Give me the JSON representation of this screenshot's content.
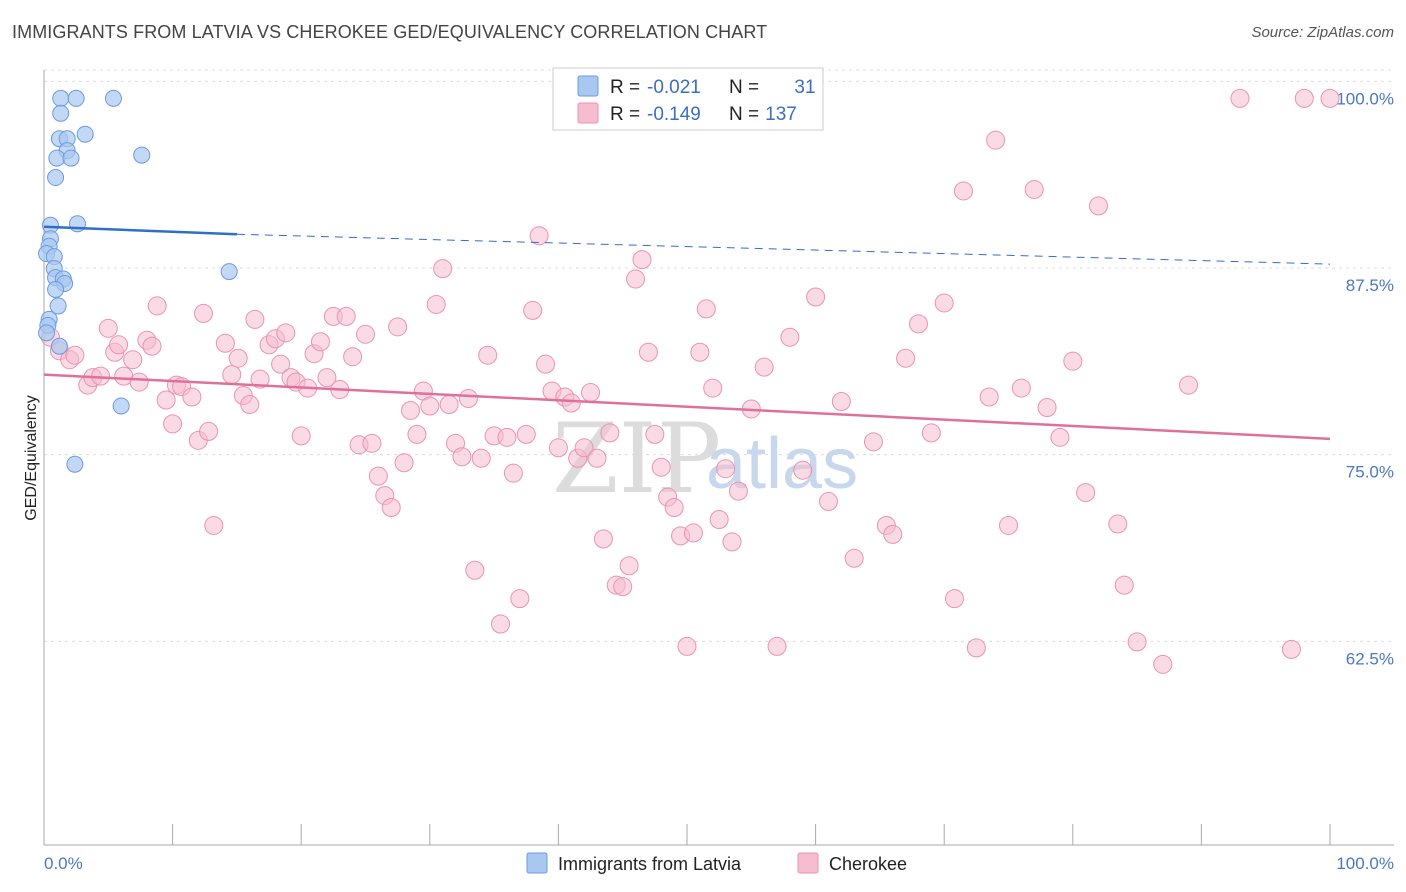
{
  "header": {
    "title": "IMMIGRANTS FROM LATVIA VS CHEROKEE GED/EQUIVALENCY CORRELATION CHART",
    "source": "Source: ZipAtlas.com"
  },
  "watermark": {
    "zip": "ZIP",
    "atlas": "atlas"
  },
  "legend": {
    "row1": {
      "r_label": "R =",
      "r_value": "-0.021",
      "n_label": "N =",
      "n_value": "31"
    },
    "row2": {
      "r_label": "R =",
      "r_value": "-0.149",
      "n_label": "N =",
      "n_value": "137"
    }
  },
  "colors": {
    "blue_fill": "#a9c8f0",
    "blue_stroke": "#6a9be0",
    "blue_line": "#2f6fca",
    "pink_fill": "#f6bcd0",
    "pink_stroke": "#ea93b2",
    "pink_line": "#e0709a",
    "grid": "#dcdcdc",
    "axis": "#aaaaaa",
    "tick_label": "#4a78c2"
  },
  "chart_data": {
    "type": "scatter",
    "title": "IMMIGRANTS FROM LATVIA VS CHEROKEE GED/EQUIVALENCY CORRELATION CHART",
    "xlabel": "",
    "ylabel": "GED/Equivalency",
    "xlim": [
      0,
      100
    ],
    "ylim": [
      50,
      101.9
    ],
    "x_tick_labels": [
      "0.0%",
      "100.0%"
    ],
    "y_ticks": [
      {
        "value": 100.0,
        "label": "100.0%"
      },
      {
        "value": 87.5,
        "label": "87.5%"
      },
      {
        "value": 75.0,
        "label": "75.0%"
      },
      {
        "value": 62.5,
        "label": "62.5%"
      }
    ],
    "bottom_legend": [
      "Immigrants from Latvia",
      "Cherokee"
    ],
    "series": [
      {
        "name": "Immigrants from Latvia",
        "R": -0.021,
        "N": 31,
        "trend": {
          "x": [
            0,
            15
          ],
          "y": [
            91.4,
            90.9
          ],
          "dash_to": [
            100,
            88.9
          ]
        },
        "points": [
          [
            1.3,
            100
          ],
          [
            2.5,
            100
          ],
          [
            5.4,
            100
          ],
          [
            1.3,
            99.0
          ],
          [
            3.2,
            97.6
          ],
          [
            1.2,
            97.3
          ],
          [
            1.8,
            97.3
          ],
          [
            1.8,
            96.5
          ],
          [
            1.0,
            96.0
          ],
          [
            2.1,
            96.0
          ],
          [
            7.6,
            96.2
          ],
          [
            0.9,
            94.7
          ],
          [
            0.5,
            91.5
          ],
          [
            2.6,
            91.6
          ],
          [
            0.5,
            90.6
          ],
          [
            0.4,
            90.1
          ],
          [
            0.2,
            89.6
          ],
          [
            0.8,
            89.4
          ],
          [
            0.8,
            88.6
          ],
          [
            0.9,
            88.0
          ],
          [
            1.5,
            87.9
          ],
          [
            1.6,
            87.6
          ],
          [
            0.9,
            87.2
          ],
          [
            14.4,
            88.4
          ],
          [
            1.1,
            86.1
          ],
          [
            0.4,
            85.2
          ],
          [
            0.3,
            84.8
          ],
          [
            0.2,
            84.3
          ],
          [
            1.2,
            83.4
          ],
          [
            6.0,
            79.4
          ],
          [
            2.4,
            75.5
          ]
        ]
      },
      {
        "name": "Cherokee",
        "R": -0.149,
        "N": 137,
        "trend": {
          "x": [
            0,
            100
          ],
          "y": [
            81.5,
            77.2
          ]
        },
        "points": [
          [
            0.5,
            84.0
          ],
          [
            1.2,
            83.1
          ],
          [
            2.0,
            82.5
          ],
          [
            2.4,
            82.8
          ],
          [
            3.4,
            80.8
          ],
          [
            3.8,
            81.3
          ],
          [
            4.4,
            81.4
          ],
          [
            5.0,
            84.6
          ],
          [
            5.5,
            83.0
          ],
          [
            5.8,
            83.5
          ],
          [
            6.2,
            81.4
          ],
          [
            6.9,
            82.5
          ],
          [
            7.4,
            81.0
          ],
          [
            8.0,
            83.8
          ],
          [
            8.4,
            83.4
          ],
          [
            8.8,
            86.1
          ],
          [
            9.5,
            79.8
          ],
          [
            10.0,
            78.2
          ],
          [
            10.3,
            80.8
          ],
          [
            10.7,
            80.7
          ],
          [
            11.5,
            80.0
          ],
          [
            12.0,
            77.1
          ],
          [
            12.4,
            85.6
          ],
          [
            12.8,
            77.7
          ],
          [
            13.2,
            71.4
          ],
          [
            14.1,
            83.6
          ],
          [
            14.6,
            81.5
          ],
          [
            15.1,
            82.6
          ],
          [
            15.5,
            80.1
          ],
          [
            16.0,
            79.5
          ],
          [
            16.4,
            85.2
          ],
          [
            16.8,
            81.2
          ],
          [
            17.5,
            83.5
          ],
          [
            18.0,
            83.9
          ],
          [
            18.4,
            82.2
          ],
          [
            18.8,
            84.3
          ],
          [
            19.2,
            81.3
          ],
          [
            19.6,
            81.0
          ],
          [
            20.0,
            77.4
          ],
          [
            20.5,
            80.6
          ],
          [
            21.0,
            82.9
          ],
          [
            21.5,
            83.7
          ],
          [
            22.0,
            81.3
          ],
          [
            22.5,
            85.4
          ],
          [
            23.0,
            80.5
          ],
          [
            23.5,
            85.4
          ],
          [
            24.0,
            82.7
          ],
          [
            24.5,
            76.8
          ],
          [
            25.0,
            84.2
          ],
          [
            25.5,
            76.9
          ],
          [
            26.0,
            74.7
          ],
          [
            26.5,
            73.4
          ],
          [
            27.0,
            72.6
          ],
          [
            27.5,
            84.7
          ],
          [
            28.0,
            75.6
          ],
          [
            28.5,
            79.1
          ],
          [
            29.0,
            77.5
          ],
          [
            29.5,
            80.4
          ],
          [
            30.0,
            79.4
          ],
          [
            30.5,
            86.2
          ],
          [
            31.0,
            88.6
          ],
          [
            31.5,
            79.5
          ],
          [
            32.0,
            76.9
          ],
          [
            32.5,
            76.0
          ],
          [
            33.0,
            79.9
          ],
          [
            33.5,
            68.4
          ],
          [
            34.0,
            75.9
          ],
          [
            34.5,
            82.8
          ],
          [
            35.0,
            77.4
          ],
          [
            35.5,
            64.8
          ],
          [
            36.0,
            77.3
          ],
          [
            36.5,
            74.9
          ],
          [
            37.0,
            66.5
          ],
          [
            37.5,
            77.5
          ],
          [
            38.0,
            85.8
          ],
          [
            38.5,
            90.8
          ],
          [
            39.0,
            82.2
          ],
          [
            39.5,
            80.4
          ],
          [
            40.0,
            76.6
          ],
          [
            40.5,
            80.0
          ],
          [
            41.0,
            79.6
          ],
          [
            41.5,
            75.9
          ],
          [
            42.0,
            76.6
          ],
          [
            42.5,
            80.3
          ],
          [
            43.0,
            75.9
          ],
          [
            43.5,
            70.5
          ],
          [
            44.0,
            77.6
          ],
          [
            44.5,
            67.4
          ],
          [
            45.0,
            67.3
          ],
          [
            45.5,
            68.7
          ],
          [
            46.0,
            87.9
          ],
          [
            46.5,
            89.2
          ],
          [
            47.0,
            83.0
          ],
          [
            47.5,
            77.5
          ],
          [
            48.0,
            75.3
          ],
          [
            48.5,
            73.3
          ],
          [
            49.0,
            72.6
          ],
          [
            49.5,
            70.7
          ],
          [
            50.0,
            63.3
          ],
          [
            50.5,
            70.9
          ],
          [
            51.0,
            83.0
          ],
          [
            51.5,
            85.9
          ],
          [
            52.0,
            80.6
          ],
          [
            52.5,
            71.8
          ],
          [
            53.0,
            75.2
          ],
          [
            53.5,
            70.3
          ],
          [
            54.0,
            73.7
          ],
          [
            55.0,
            79.2
          ],
          [
            56.0,
            82.0
          ],
          [
            57.0,
            63.3
          ],
          [
            58.0,
            84.0
          ],
          [
            59.0,
            75.1
          ],
          [
            60.0,
            86.7
          ],
          [
            61.0,
            73.0
          ],
          [
            62.0,
            79.7
          ],
          [
            63.0,
            69.2
          ],
          [
            64.5,
            77.0
          ],
          [
            65.5,
            71.4
          ],
          [
            66.0,
            70.8
          ],
          [
            67.0,
            82.6
          ],
          [
            68.0,
            84.9
          ],
          [
            69.0,
            77.6
          ],
          [
            70.0,
            86.3
          ],
          [
            70.8,
            66.5
          ],
          [
            71.5,
            93.8
          ],
          [
            72.5,
            63.2
          ],
          [
            73.5,
            80.0
          ],
          [
            74.0,
            97.2
          ],
          [
            75.0,
            71.4
          ],
          [
            76.0,
            80.6
          ],
          [
            77.0,
            93.9
          ],
          [
            78.0,
            79.3
          ],
          [
            79.0,
            77.3
          ],
          [
            80.0,
            82.4
          ],
          [
            81.0,
            73.6
          ],
          [
            82.0,
            92.8
          ],
          [
            83.5,
            71.5
          ],
          [
            84.0,
            67.4
          ],
          [
            85.0,
            63.6
          ],
          [
            87.0,
            62.1
          ],
          [
            89.0,
            80.8
          ],
          [
            93.0,
            100
          ],
          [
            97.0,
            63.1
          ],
          [
            98.0,
            100
          ],
          [
            100.0,
            100
          ]
        ]
      }
    ]
  }
}
